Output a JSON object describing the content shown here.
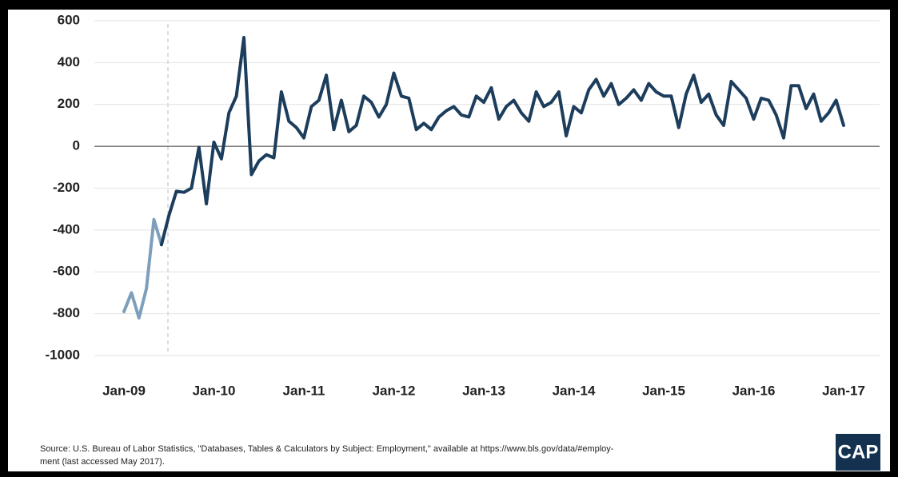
{
  "chart_data": {
    "type": "line",
    "categories": [
      "Jan-09",
      null,
      null,
      null,
      null,
      null,
      null,
      null,
      null,
      null,
      null,
      null,
      "Jan-10",
      null,
      null,
      null,
      null,
      null,
      null,
      null,
      null,
      null,
      null,
      null,
      "Jan-11",
      null,
      null,
      null,
      null,
      null,
      null,
      null,
      null,
      null,
      null,
      null,
      "Jan-12",
      null,
      null,
      null,
      null,
      null,
      null,
      null,
      null,
      null,
      null,
      null,
      "Jan-13",
      null,
      null,
      null,
      null,
      null,
      null,
      null,
      null,
      null,
      null,
      null,
      "Jan-14",
      null,
      null,
      null,
      null,
      null,
      null,
      null,
      null,
      null,
      null,
      null,
      "Jan-15",
      null,
      null,
      null,
      null,
      null,
      null,
      null,
      null,
      null,
      null,
      null,
      "Jan-16",
      null,
      null,
      null,
      null,
      null,
      null,
      null,
      null,
      null,
      null,
      null,
      "Jan-17"
    ],
    "series": [
      {
        "color": "#7d9fbb",
        "values": [
          -790,
          -700,
          -820,
          -680,
          -350,
          -470,
          null,
          null,
          null,
          null,
          null,
          null,
          null,
          null,
          null,
          null,
          null,
          null,
          null,
          null,
          null,
          null,
          null,
          null,
          null,
          null,
          null,
          null,
          null,
          null,
          null,
          null,
          null,
          null,
          null,
          null,
          null,
          null,
          null,
          null,
          null,
          null,
          null,
          null,
          null,
          null,
          null,
          null,
          null,
          null,
          null,
          null,
          null,
          null,
          null,
          null,
          null,
          null,
          null,
          null,
          null,
          null,
          null,
          null,
          null,
          null,
          null,
          null,
          null,
          null,
          null,
          null,
          null,
          null,
          null,
          null,
          null,
          null,
          null,
          null,
          null,
          null,
          null,
          null,
          null,
          null,
          null,
          null,
          null,
          null,
          null,
          null,
          null,
          null,
          null,
          null,
          null
        ]
      },
      {
        "color": "#1c3d5c",
        "values": [
          null,
          null,
          null,
          null,
          null,
          -470,
          -330,
          -215,
          -220,
          -200,
          -5,
          -275,
          20,
          -60,
          160,
          240,
          520,
          -135,
          -70,
          -40,
          -55,
          260,
          120,
          90,
          40,
          190,
          220,
          340,
          80,
          220,
          70,
          100,
          240,
          210,
          140,
          200,
          350,
          240,
          230,
          80,
          110,
          80,
          140,
          170,
          190,
          150,
          140,
          240,
          210,
          280,
          130,
          190,
          220,
          160,
          120,
          260,
          190,
          210,
          260,
          50,
          190,
          160,
          270,
          320,
          240,
          300,
          200,
          230,
          270,
          220,
          300,
          260,
          240,
          240,
          90,
          250,
          340,
          210,
          250,
          150,
          100,
          310,
          270,
          230,
          130,
          230,
          220,
          150,
          40,
          290,
          290,
          180,
          250,
          120,
          160,
          220,
          100
        ]
      }
    ],
    "ylim": [
      -1000,
      600
    ],
    "yticks": [
      -1000,
      -800,
      -600,
      -400,
      -200,
      0,
      200,
      400,
      600
    ],
    "grid": true,
    "source": [
      "Source: U.S. Bureau of Labor Statistics, \"Databases, Tables & Calculators by Subject: Employment,\" available at https://www.bls.gov/data/#employ-",
      "ment (last accessed May 2017)."
    ],
    "logo": "CAP"
  }
}
